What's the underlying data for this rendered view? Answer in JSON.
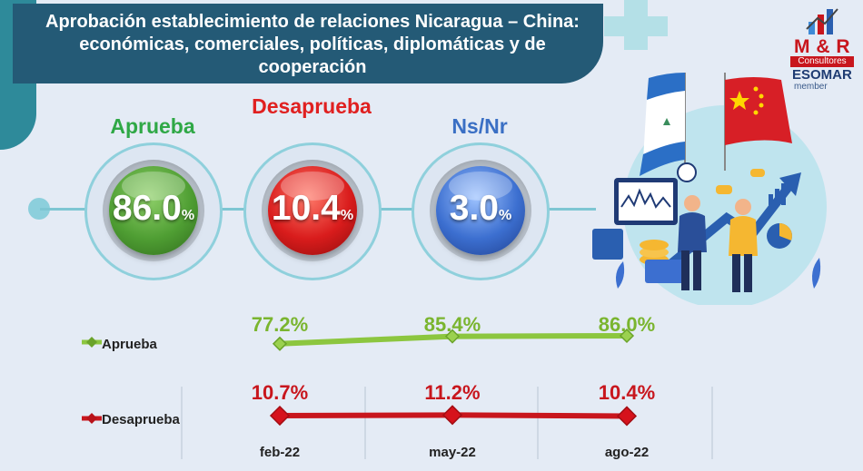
{
  "title": "Aprobación establecimiento de relaciones Nicaragua – China: económicas, comerciales, políticas, diplomáticas y de cooperación",
  "logo": {
    "name": "M & R",
    "subtitle": "Consultores",
    "esomar": "ESOMAR",
    "member": "member"
  },
  "indicators": [
    {
      "label": "Aprueba",
      "value": "86.0",
      "unit": "%",
      "color": "#2fa846",
      "ball": "#4f9e33"
    },
    {
      "label": "Desaprueba",
      "value": "10.4",
      "unit": "%",
      "color": "#e02020",
      "ball": "#d91c1c"
    },
    {
      "label": "Ns/Nr",
      "value": "3.0",
      "unit": "%",
      "color": "#3a6fc4",
      "ball": "#3c6fd0"
    }
  ],
  "chart_data": {
    "type": "line",
    "categories": [
      "feb-22",
      "may-22",
      "ago-22"
    ],
    "series": [
      {
        "name": "Aprueba",
        "values": [
          77.2,
          85.4,
          86.0
        ],
        "labels": [
          "77.2%",
          "85.4%",
          "86.0%"
        ],
        "color": "#8cc63f"
      },
      {
        "name": "Desaprueba",
        "values": [
          10.7,
          11.2,
          10.4
        ],
        "labels": [
          "10.7%",
          "11.2%",
          "10.4%"
        ],
        "color": "#c8161d"
      }
    ]
  }
}
